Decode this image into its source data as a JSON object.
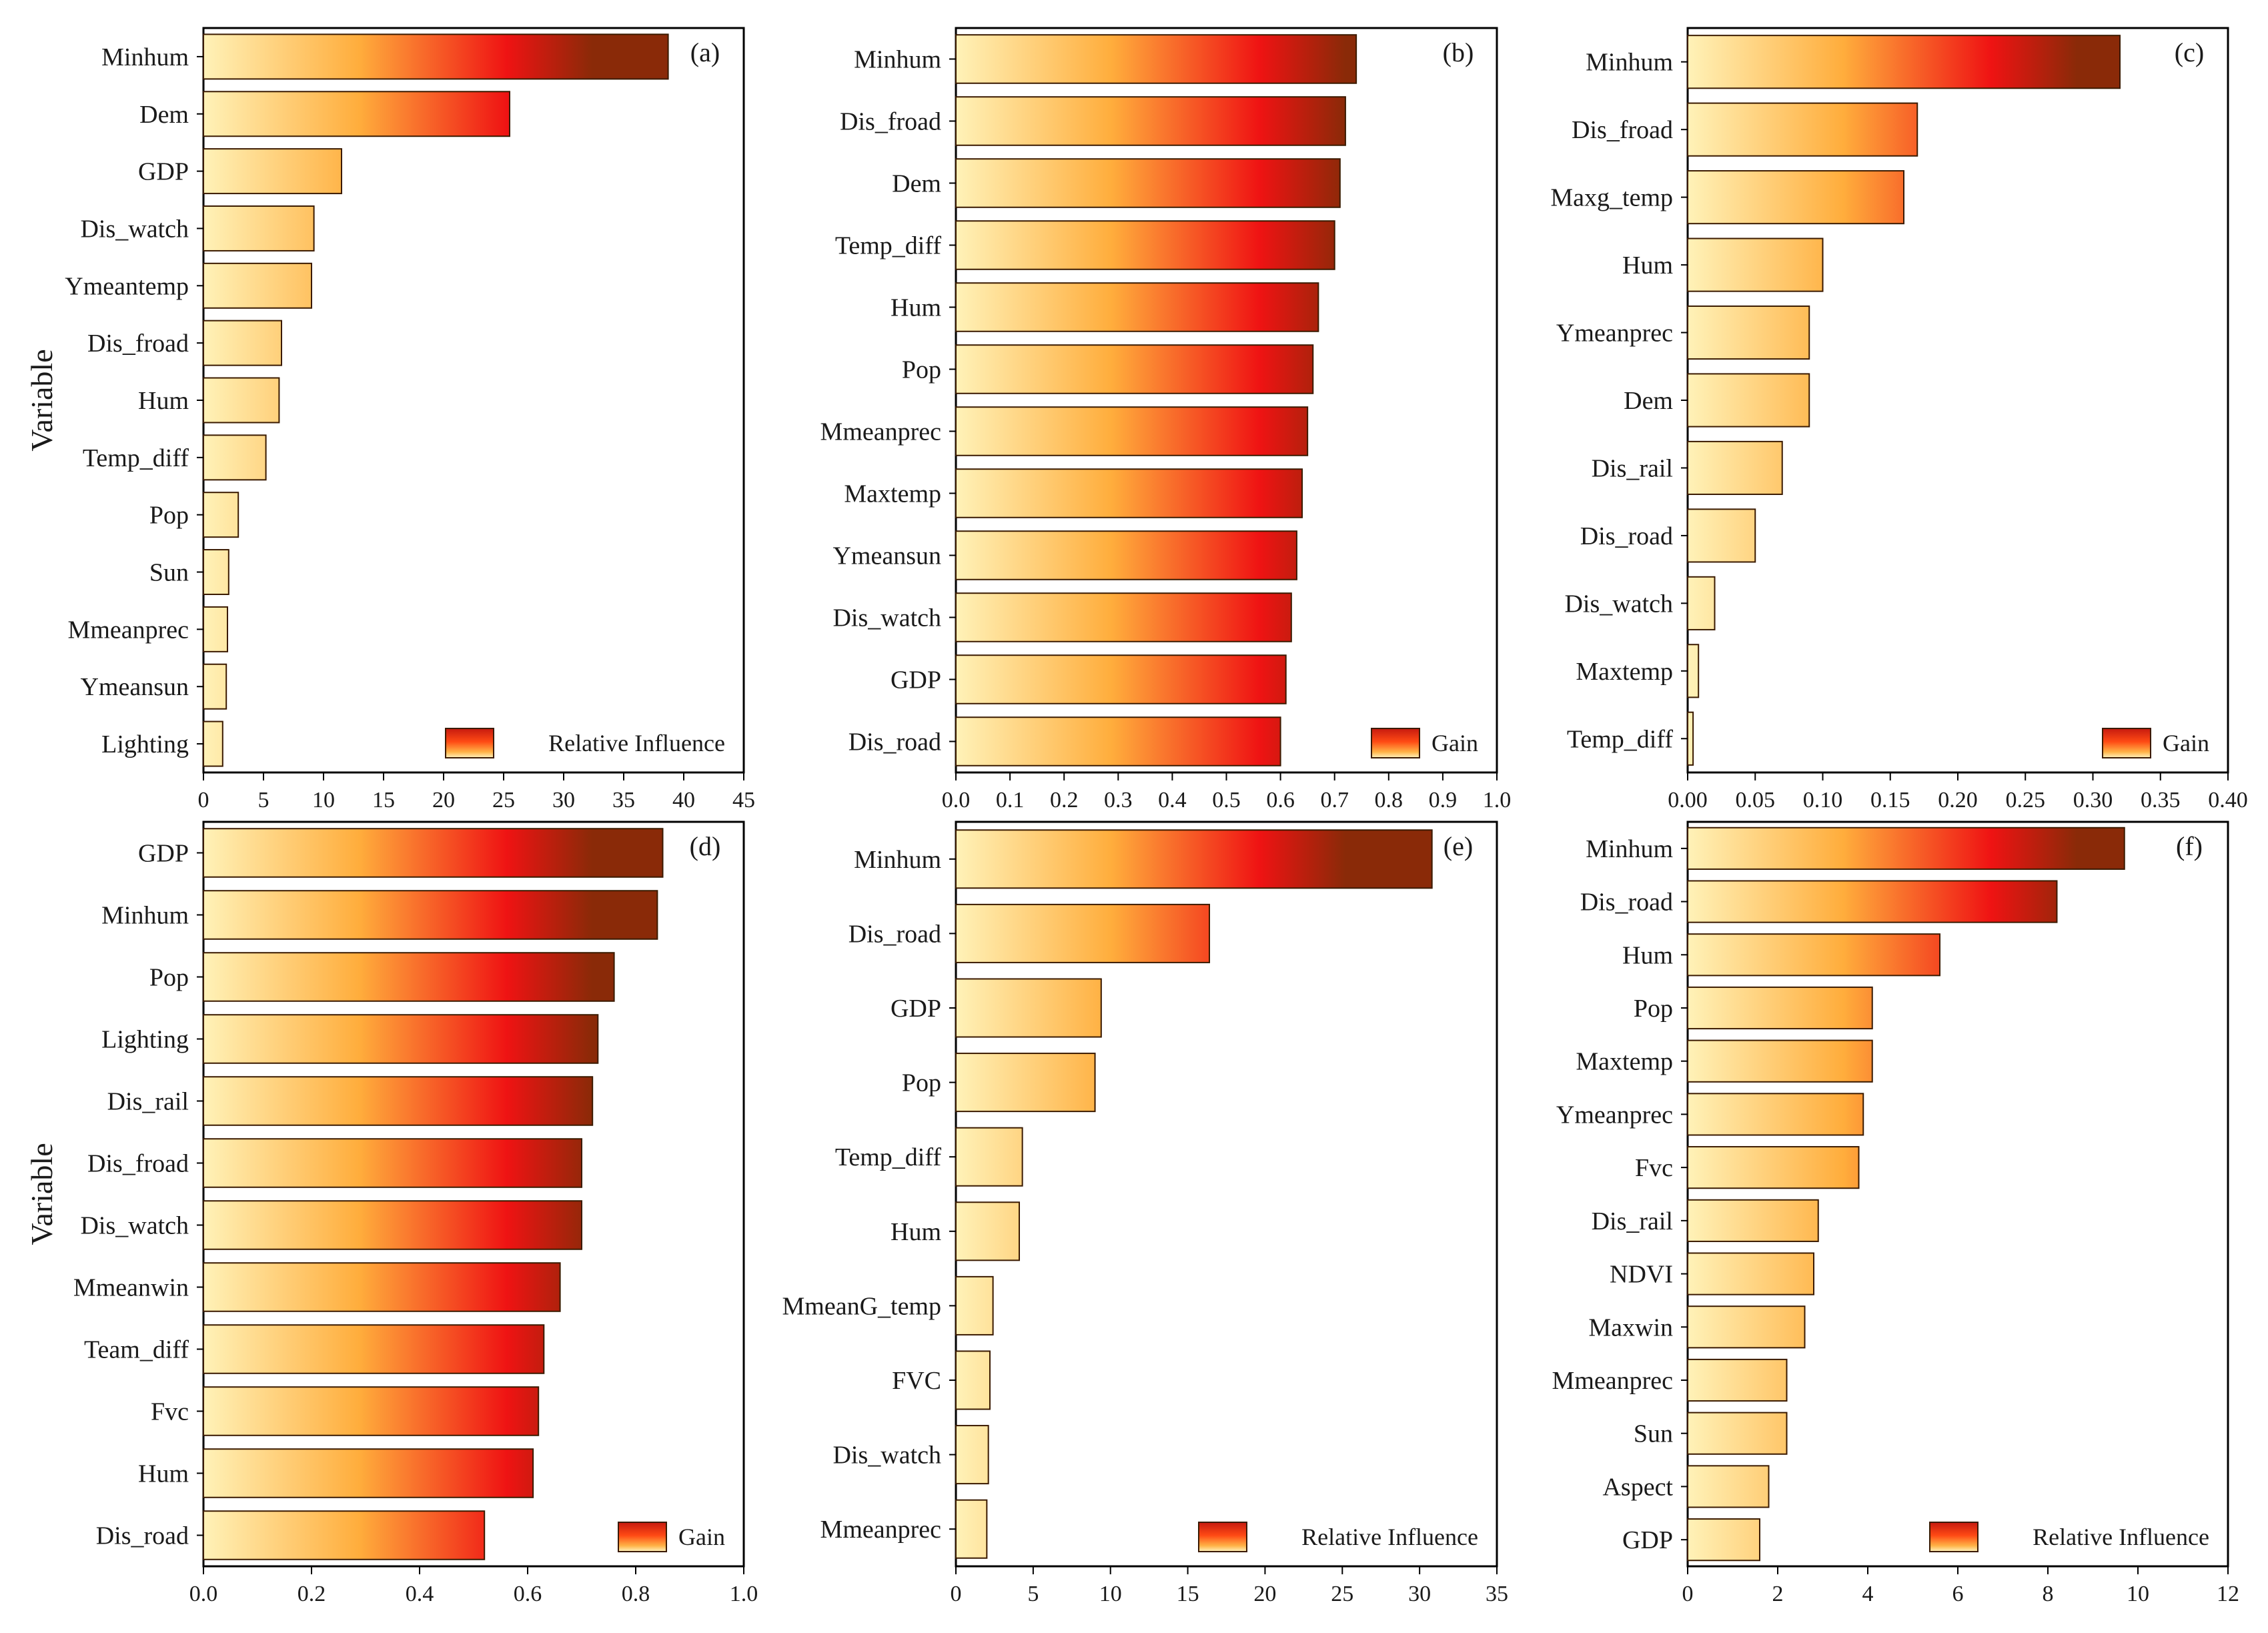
{
  "figure": {
    "charts": [
      "a",
      "b",
      "c",
      "d",
      "e",
      "f"
    ]
  },
  "chart_data": [
    {
      "panel": "(a)",
      "type": "bar",
      "orientation": "horizontal",
      "ylabel": "Variable",
      "xlabel": "",
      "legend": "Relative Influence",
      "xlim": [
        0,
        45
      ],
      "xticks": [
        "0",
        "5",
        "10",
        "15",
        "20",
        "25",
        "30",
        "35",
        "40",
        "45"
      ],
      "categories": [
        "Minhum",
        "Dem",
        "GDP",
        "Dis_watch",
        "Ymeantemp",
        "Dis_froad",
        "Hum",
        "Temp_diff",
        "Pop",
        "Sun",
        "Mmeanprec",
        "Ymeansun",
        "Lighting"
      ],
      "values": [
        38.7,
        25.5,
        11.5,
        9.2,
        9.0,
        6.5,
        6.3,
        5.2,
        2.9,
        2.1,
        2.0,
        1.9,
        1.6
      ]
    },
    {
      "panel": "(b)",
      "type": "bar",
      "orientation": "horizontal",
      "ylabel": "",
      "xlabel": "",
      "legend": "Gain",
      "xlim": [
        0,
        1.0
      ],
      "xticks": [
        "0.0",
        "0.1",
        "0.2",
        "0.3",
        "0.4",
        "0.5",
        "0.6",
        "0.7",
        "0.8",
        "0.9",
        "1.0"
      ],
      "categories": [
        "Minhum",
        "Dis_froad",
        "Dem",
        "Temp_diff",
        "Hum",
        "Pop",
        "Mmeanprec",
        "Maxtemp",
        "Ymeansun",
        "Dis_watch",
        "GDP",
        "Dis_road"
      ],
      "values": [
        0.74,
        0.72,
        0.71,
        0.7,
        0.67,
        0.66,
        0.65,
        0.64,
        0.63,
        0.62,
        0.61,
        0.6
      ]
    },
    {
      "panel": "(c)",
      "type": "bar",
      "orientation": "horizontal",
      "ylabel": "",
      "xlabel": "",
      "legend": "Gain",
      "xlim": [
        0,
        0.4
      ],
      "xticks": [
        "0.00",
        "0.05",
        "0.10",
        "0.15",
        "0.20",
        "0.25",
        "0.30",
        "0.35",
        "0.40"
      ],
      "categories": [
        "Minhum",
        "Dis_froad",
        "Maxg_temp",
        "Hum",
        "Ymeanprec",
        "Dem",
        "Dis_rail",
        "Dis_road",
        "Dis_watch",
        "Maxtemp",
        "Temp_diff"
      ],
      "values": [
        0.32,
        0.17,
        0.16,
        0.1,
        0.09,
        0.09,
        0.07,
        0.05,
        0.02,
        0.008,
        0.004
      ]
    },
    {
      "panel": "(d)",
      "type": "bar",
      "orientation": "horizontal",
      "ylabel": "Variable",
      "xlabel": "",
      "legend": "Gain",
      "xlim": [
        0,
        1.0
      ],
      "xticks": [
        "0.0",
        "0.2",
        "0.4",
        "0.6",
        "0.8",
        "1.0"
      ],
      "categories": [
        "GDP",
        "Minhum",
        "Pop",
        "Lighting",
        "Dis_rail",
        "Dis_froad",
        "Dis_watch",
        "Mmeanwin",
        "Team_diff",
        "Fvc",
        "Hum",
        "Dis_road"
      ],
      "values": [
        0.85,
        0.84,
        0.76,
        0.73,
        0.72,
        0.7,
        0.7,
        0.66,
        0.63,
        0.62,
        0.61,
        0.52
      ]
    },
    {
      "panel": "(e)",
      "type": "bar",
      "orientation": "horizontal",
      "ylabel": "",
      "xlabel": "",
      "legend": "Relative Influence",
      "xlim": [
        0,
        35
      ],
      "xticks": [
        "0",
        "5",
        "10",
        "15",
        "20",
        "25",
        "30",
        "35"
      ],
      "categories": [
        "Minhum",
        "Dis_road",
        "GDP",
        "Pop",
        "Temp_diff",
        "Hum",
        "MmeanG_temp",
        "FVC",
        "Dis_watch",
        "Mmeanprec"
      ],
      "values": [
        30.8,
        16.4,
        9.4,
        9.0,
        4.3,
        4.1,
        2.4,
        2.2,
        2.1,
        2.0
      ]
    },
    {
      "panel": "(f)",
      "type": "bar",
      "orientation": "horizontal",
      "ylabel": "",
      "xlabel": "",
      "legend": "Relative Influence",
      "xlim": [
        0,
        12
      ],
      "xticks": [
        "0",
        "2",
        "4",
        "6",
        "8",
        "10",
        "12"
      ],
      "categories": [
        "Minhum",
        "Dis_road",
        "Hum",
        "Pop",
        "Maxtemp",
        "Ymeanprec",
        "Fvc",
        "Dis_rail",
        "NDVI",
        "Maxwin",
        "Mmeanprec",
        "Sun",
        "Aspect",
        "GDP"
      ],
      "values": [
        9.7,
        8.2,
        5.6,
        4.1,
        4.1,
        3.9,
        3.8,
        2.9,
        2.8,
        2.6,
        2.2,
        2.2,
        1.8,
        1.6
      ]
    }
  ]
}
